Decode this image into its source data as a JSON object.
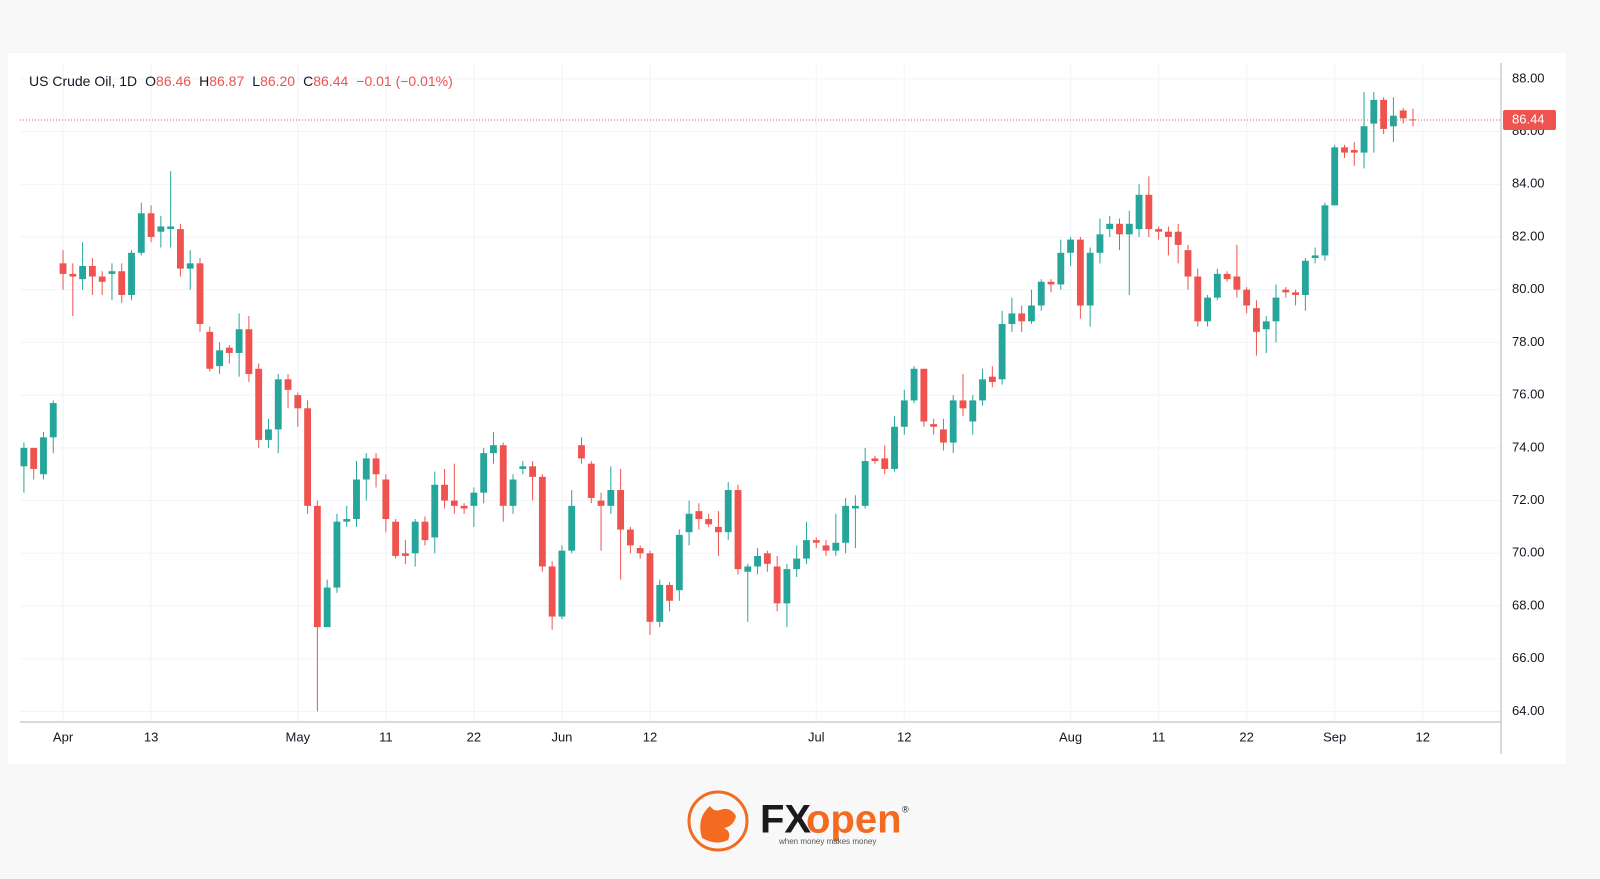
{
  "chart_data": {
    "type": "candlestick",
    "legend": {
      "symbol": "US Crude Oil, 1D",
      "items": [
        {
          "label": "O",
          "value": "86.46"
        },
        {
          "label": "H",
          "value": "86.87"
        },
        {
          "label": "L",
          "value": "86.20"
        },
        {
          "label": "C",
          "value": "86.44"
        }
      ],
      "change": "−0.01 (−0.01%)"
    },
    "last_price": {
      "value": 86.44,
      "label": "86.44"
    },
    "up_color": "#26a69a",
    "down_color": "#ef5350",
    "ylim": [
      63.6,
      88.6
    ],
    "yticks": [
      {
        "value": 64,
        "label": "64.00"
      },
      {
        "value": 66,
        "label": "66.00"
      },
      {
        "value": 68,
        "label": "68.00"
      },
      {
        "value": 70,
        "label": "70.00"
      },
      {
        "value": 72,
        "label": "72.00"
      },
      {
        "value": 74,
        "label": "74.00"
      },
      {
        "value": 76,
        "label": "76.00"
      },
      {
        "value": 78,
        "label": "78.00"
      },
      {
        "value": 80,
        "label": "80.00"
      },
      {
        "value": 82,
        "label": "82.00"
      },
      {
        "value": 84,
        "label": "84.00"
      },
      {
        "value": 86,
        "label": "86.00"
      },
      {
        "value": 88,
        "label": "88.00"
      }
    ],
    "xlim": [
      -0.4,
      151
    ],
    "xticks": [
      {
        "value": 4,
        "label": "Apr"
      },
      {
        "value": 13,
        "label": "13"
      },
      {
        "value": 28,
        "label": "May"
      },
      {
        "value": 37,
        "label": "11"
      },
      {
        "value": 46,
        "label": "22"
      },
      {
        "value": 55,
        "label": "Jun"
      },
      {
        "value": 64,
        "label": "12"
      },
      {
        "value": 81,
        "label": "Jul"
      },
      {
        "value": 90,
        "label": "12"
      },
      {
        "value": 107,
        "label": "Aug"
      },
      {
        "value": 116,
        "label": "11"
      },
      {
        "value": 125,
        "label": "22"
      },
      {
        "value": 134,
        "label": "Sep"
      },
      {
        "value": 143,
        "label": "12"
      }
    ],
    "grid": true,
    "candles": [
      {
        "open": 73.3,
        "high": 74.2,
        "low": 72.3,
        "close": 74.0
      },
      {
        "open": 74.0,
        "high": 74.0,
        "low": 72.8,
        "close": 73.2
      },
      {
        "open": 73.0,
        "high": 74.6,
        "low": 72.8,
        "close": 74.4
      },
      {
        "open": 74.4,
        "high": 75.8,
        "low": 73.8,
        "close": 75.7
      },
      {
        "open": 81.0,
        "high": 81.5,
        "low": 80.0,
        "close": 80.6
      },
      {
        "open": 80.6,
        "high": 81.0,
        "low": 79.0,
        "close": 80.5
      },
      {
        "open": 80.4,
        "high": 81.8,
        "low": 80.0,
        "close": 80.9
      },
      {
        "open": 80.9,
        "high": 81.2,
        "low": 79.8,
        "close": 80.5
      },
      {
        "open": 80.5,
        "high": 80.7,
        "low": 79.8,
        "close": 80.3
      },
      {
        "open": 80.6,
        "high": 81.0,
        "low": 79.6,
        "close": 80.7
      },
      {
        "open": 80.7,
        "high": 81.0,
        "low": 79.5,
        "close": 79.8
      },
      {
        "open": 79.8,
        "high": 81.5,
        "low": 79.6,
        "close": 81.4
      },
      {
        "open": 81.4,
        "high": 83.3,
        "low": 81.3,
        "close": 82.9
      },
      {
        "open": 82.9,
        "high": 83.2,
        "low": 81.8,
        "close": 82.0
      },
      {
        "open": 82.2,
        "high": 82.8,
        "low": 81.6,
        "close": 82.4
      },
      {
        "open": 82.3,
        "high": 84.5,
        "low": 81.6,
        "close": 82.4
      },
      {
        "open": 82.3,
        "high": 82.5,
        "low": 80.5,
        "close": 80.8
      },
      {
        "open": 80.8,
        "high": 81.5,
        "low": 80.0,
        "close": 81.0
      },
      {
        "open": 81.0,
        "high": 81.2,
        "low": 78.4,
        "close": 78.7
      },
      {
        "open": 78.4,
        "high": 78.6,
        "low": 76.9,
        "close": 77.0
      },
      {
        "open": 77.1,
        "high": 78.0,
        "low": 76.8,
        "close": 77.7
      },
      {
        "open": 77.8,
        "high": 77.9,
        "low": 77.2,
        "close": 77.6
      },
      {
        "open": 77.6,
        "high": 79.1,
        "low": 76.7,
        "close": 78.5
      },
      {
        "open": 78.5,
        "high": 79.0,
        "low": 76.5,
        "close": 76.8
      },
      {
        "open": 77.0,
        "high": 77.2,
        "low": 74.0,
        "close": 74.3
      },
      {
        "open": 74.3,
        "high": 75.1,
        "low": 74.0,
        "close": 74.7
      },
      {
        "open": 74.7,
        "high": 76.8,
        "low": 73.8,
        "close": 76.6
      },
      {
        "open": 76.6,
        "high": 76.8,
        "low": 75.5,
        "close": 76.2
      },
      {
        "open": 76.0,
        "high": 76.1,
        "low": 74.8,
        "close": 75.5
      },
      {
        "open": 75.5,
        "high": 75.8,
        "low": 71.5,
        "close": 71.8
      },
      {
        "open": 71.8,
        "high": 72.0,
        "low": 64.0,
        "close": 67.2
      },
      {
        "open": 67.2,
        "high": 69.0,
        "low": 67.2,
        "close": 68.7
      },
      {
        "open": 68.7,
        "high": 71.5,
        "low": 68.5,
        "close": 71.2
      },
      {
        "open": 71.2,
        "high": 71.8,
        "low": 71.0,
        "close": 71.3
      },
      {
        "open": 71.3,
        "high": 73.5,
        "low": 71.0,
        "close": 72.8
      },
      {
        "open": 72.8,
        "high": 73.8,
        "low": 72.0,
        "close": 73.6
      },
      {
        "open": 73.6,
        "high": 73.8,
        "low": 72.5,
        "close": 73.0
      },
      {
        "open": 72.8,
        "high": 73.0,
        "low": 70.8,
        "close": 71.3
      },
      {
        "open": 71.2,
        "high": 71.3,
        "low": 69.8,
        "close": 69.9
      },
      {
        "open": 70.0,
        "high": 70.5,
        "low": 69.6,
        "close": 69.9
      },
      {
        "open": 70.0,
        "high": 71.3,
        "low": 69.5,
        "close": 71.2
      },
      {
        "open": 71.2,
        "high": 71.4,
        "low": 70.3,
        "close": 70.5
      },
      {
        "open": 70.6,
        "high": 73.1,
        "low": 70.0,
        "close": 72.6
      },
      {
        "open": 72.6,
        "high": 73.2,
        "low": 71.7,
        "close": 72.0
      },
      {
        "open": 72.0,
        "high": 73.4,
        "low": 71.5,
        "close": 71.8
      },
      {
        "open": 71.8,
        "high": 71.9,
        "low": 71.5,
        "close": 71.7
      },
      {
        "open": 71.8,
        "high": 72.5,
        "low": 71.0,
        "close": 72.3
      },
      {
        "open": 72.3,
        "high": 74.0,
        "low": 71.9,
        "close": 73.8
      },
      {
        "open": 73.8,
        "high": 74.6,
        "low": 73.4,
        "close": 74.1
      },
      {
        "open": 74.1,
        "high": 74.2,
        "low": 71.2,
        "close": 71.8
      },
      {
        "open": 71.8,
        "high": 73.0,
        "low": 71.5,
        "close": 72.8
      },
      {
        "open": 73.2,
        "high": 73.5,
        "low": 73.0,
        "close": 73.3
      },
      {
        "open": 73.3,
        "high": 73.5,
        "low": 72.0,
        "close": 72.9
      },
      {
        "open": 72.9,
        "high": 73.0,
        "low": 69.3,
        "close": 69.5
      },
      {
        "open": 69.5,
        "high": 69.7,
        "low": 67.1,
        "close": 67.6
      },
      {
        "open": 67.6,
        "high": 70.3,
        "low": 67.5,
        "close": 70.1
      },
      {
        "open": 70.1,
        "high": 72.4,
        "low": 70.0,
        "close": 71.8
      },
      {
        "open": 74.1,
        "high": 74.4,
        "low": 73.4,
        "close": 73.6
      },
      {
        "open": 73.4,
        "high": 73.5,
        "low": 71.9,
        "close": 72.1
      },
      {
        "open": 72.0,
        "high": 72.3,
        "low": 70.1,
        "close": 71.8
      },
      {
        "open": 71.8,
        "high": 73.3,
        "low": 71.5,
        "close": 72.4
      },
      {
        "open": 72.4,
        "high": 73.2,
        "low": 69.0,
        "close": 70.9
      },
      {
        "open": 70.9,
        "high": 71.0,
        "low": 70.0,
        "close": 70.3
      },
      {
        "open": 70.2,
        "high": 70.3,
        "low": 69.8,
        "close": 70.0
      },
      {
        "open": 70.0,
        "high": 70.1,
        "low": 66.9,
        "close": 67.4
      },
      {
        "open": 67.4,
        "high": 69.0,
        "low": 67.2,
        "close": 68.8
      },
      {
        "open": 68.8,
        "high": 68.9,
        "low": 67.8,
        "close": 68.2
      },
      {
        "open": 68.6,
        "high": 70.9,
        "low": 68.2,
        "close": 70.7
      },
      {
        "open": 70.8,
        "high": 72.0,
        "low": 70.3,
        "close": 71.5
      },
      {
        "open": 71.6,
        "high": 71.9,
        "low": 70.9,
        "close": 71.3
      },
      {
        "open": 71.3,
        "high": 71.5,
        "low": 71.0,
        "close": 71.1
      },
      {
        "open": 71.0,
        "high": 71.6,
        "low": 69.9,
        "close": 70.8
      },
      {
        "open": 70.8,
        "high": 72.7,
        "low": 70.5,
        "close": 72.4
      },
      {
        "open": 72.4,
        "high": 72.6,
        "low": 69.2,
        "close": 69.4
      },
      {
        "open": 69.3,
        "high": 69.6,
        "low": 67.4,
        "close": 69.5
      },
      {
        "open": 69.5,
        "high": 70.2,
        "low": 69.2,
        "close": 69.9
      },
      {
        "open": 70.0,
        "high": 70.1,
        "low": 69.3,
        "close": 69.6
      },
      {
        "open": 69.5,
        "high": 69.9,
        "low": 67.8,
        "close": 68.1
      },
      {
        "open": 68.1,
        "high": 69.6,
        "low": 67.2,
        "close": 69.4
      },
      {
        "open": 69.4,
        "high": 70.3,
        "low": 69.1,
        "close": 69.8
      },
      {
        "open": 69.8,
        "high": 71.2,
        "low": 69.6,
        "close": 70.5
      },
      {
        "open": 70.5,
        "high": 70.6,
        "low": 70.2,
        "close": 70.4
      },
      {
        "open": 70.3,
        "high": 70.5,
        "low": 69.9,
        "close": 70.1
      },
      {
        "open": 70.1,
        "high": 71.5,
        "low": 69.9,
        "close": 70.4
      },
      {
        "open": 70.4,
        "high": 72.1,
        "low": 70.0,
        "close": 71.8
      },
      {
        "open": 71.7,
        "high": 72.2,
        "low": 70.2,
        "close": 71.8
      },
      {
        "open": 71.8,
        "high": 74.0,
        "low": 71.7,
        "close": 73.5
      },
      {
        "open": 73.6,
        "high": 73.7,
        "low": 73.4,
        "close": 73.5
      },
      {
        "open": 73.6,
        "high": 74.1,
        "low": 73.0,
        "close": 73.2
      },
      {
        "open": 73.2,
        "high": 75.2,
        "low": 73.1,
        "close": 74.8
      },
      {
        "open": 74.8,
        "high": 76.2,
        "low": 74.5,
        "close": 75.8
      },
      {
        "open": 75.8,
        "high": 77.1,
        "low": 75.7,
        "close": 77.0
      },
      {
        "open": 77.0,
        "high": 77.0,
        "low": 74.8,
        "close": 75.0
      },
      {
        "open": 74.9,
        "high": 75.1,
        "low": 74.5,
        "close": 74.8
      },
      {
        "open": 74.7,
        "high": 75.1,
        "low": 73.9,
        "close": 74.2
      },
      {
        "open": 74.2,
        "high": 76.0,
        "low": 73.8,
        "close": 75.8
      },
      {
        "open": 75.8,
        "high": 76.8,
        "low": 75.2,
        "close": 75.5
      },
      {
        "open": 75.0,
        "high": 76.0,
        "low": 74.5,
        "close": 75.8
      },
      {
        "open": 75.8,
        "high": 77.0,
        "low": 75.6,
        "close": 76.6
      },
      {
        "open": 76.7,
        "high": 77.1,
        "low": 76.3,
        "close": 76.5
      },
      {
        "open": 76.6,
        "high": 79.2,
        "low": 76.4,
        "close": 78.7
      },
      {
        "open": 78.7,
        "high": 79.7,
        "low": 78.4,
        "close": 79.1
      },
      {
        "open": 79.1,
        "high": 79.4,
        "low": 78.4,
        "close": 78.8
      },
      {
        "open": 78.8,
        "high": 80.0,
        "low": 78.7,
        "close": 79.4
      },
      {
        "open": 79.4,
        "high": 80.4,
        "low": 79.2,
        "close": 80.3
      },
      {
        "open": 80.3,
        "high": 80.4,
        "low": 79.9,
        "close": 80.2
      },
      {
        "open": 80.2,
        "high": 81.9,
        "low": 80.0,
        "close": 81.4
      },
      {
        "open": 81.4,
        "high": 82.0,
        "low": 80.9,
        "close": 81.9
      },
      {
        "open": 81.9,
        "high": 82.0,
        "low": 78.9,
        "close": 79.4
      },
      {
        "open": 79.4,
        "high": 81.6,
        "low": 78.6,
        "close": 81.4
      },
      {
        "open": 81.4,
        "high": 82.7,
        "low": 81.0,
        "close": 82.1
      },
      {
        "open": 82.3,
        "high": 82.8,
        "low": 82.0,
        "close": 82.5
      },
      {
        "open": 82.5,
        "high": 82.7,
        "low": 81.5,
        "close": 82.1
      },
      {
        "open": 82.1,
        "high": 83.0,
        "low": 79.8,
        "close": 82.5
      },
      {
        "open": 82.3,
        "high": 84.0,
        "low": 82.0,
        "close": 83.6
      },
      {
        "open": 83.6,
        "high": 84.3,
        "low": 82.0,
        "close": 82.3
      },
      {
        "open": 82.3,
        "high": 82.4,
        "low": 81.9,
        "close": 82.2
      },
      {
        "open": 82.2,
        "high": 82.4,
        "low": 81.3,
        "close": 82.0
      },
      {
        "open": 82.2,
        "high": 82.5,
        "low": 81.0,
        "close": 81.7
      },
      {
        "open": 81.5,
        "high": 81.7,
        "low": 80.0,
        "close": 80.5
      },
      {
        "open": 80.5,
        "high": 80.8,
        "low": 78.6,
        "close": 78.8
      },
      {
        "open": 78.8,
        "high": 79.8,
        "low": 78.6,
        "close": 79.7
      },
      {
        "open": 79.7,
        "high": 80.8,
        "low": 79.6,
        "close": 80.6
      },
      {
        "open": 80.6,
        "high": 80.7,
        "low": 80.3,
        "close": 80.4
      },
      {
        "open": 80.5,
        "high": 81.7,
        "low": 79.7,
        "close": 80.0
      },
      {
        "open": 80.0,
        "high": 80.1,
        "low": 79.1,
        "close": 79.4
      },
      {
        "open": 79.3,
        "high": 79.6,
        "low": 77.5,
        "close": 78.4
      },
      {
        "open": 78.5,
        "high": 79.0,
        "low": 77.6,
        "close": 78.8
      },
      {
        "open": 78.8,
        "high": 80.2,
        "low": 78.0,
        "close": 79.7
      },
      {
        "open": 80.0,
        "high": 80.1,
        "low": 79.7,
        "close": 79.9
      },
      {
        "open": 79.9,
        "high": 80.0,
        "low": 79.4,
        "close": 79.8
      },
      {
        "open": 79.8,
        "high": 81.2,
        "low": 79.2,
        "close": 81.1
      },
      {
        "open": 81.2,
        "high": 81.6,
        "low": 81.0,
        "close": 81.3
      },
      {
        "open": 81.3,
        "high": 83.3,
        "low": 81.1,
        "close": 83.2
      },
      {
        "open": 83.2,
        "high": 85.5,
        "low": 83.2,
        "close": 85.4
      },
      {
        "open": 85.4,
        "high": 85.5,
        "low": 85.0,
        "close": 85.2
      },
      {
        "open": 85.3,
        "high": 85.6,
        "low": 84.7,
        "close": 85.2
      },
      {
        "open": 85.2,
        "high": 87.5,
        "low": 84.6,
        "close": 86.2
      },
      {
        "open": 86.3,
        "high": 87.5,
        "low": 85.2,
        "close": 87.2
      },
      {
        "open": 87.2,
        "high": 87.3,
        "low": 85.9,
        "close": 86.1
      },
      {
        "open": 86.2,
        "high": 87.3,
        "low": 85.6,
        "close": 86.6
      },
      {
        "open": 86.8,
        "high": 86.9,
        "low": 86.3,
        "close": 86.5
      },
      {
        "open": 86.46,
        "high": 86.87,
        "low": 86.2,
        "close": 86.44
      }
    ]
  },
  "footer": {
    "brand_a": "FX",
    "brand_b": "open",
    "registered": "®",
    "tagline": "when money makes money"
  }
}
